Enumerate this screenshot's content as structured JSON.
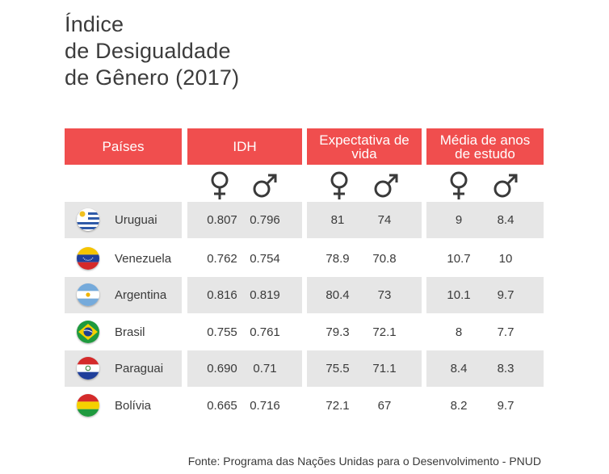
{
  "title_lines": [
    "Índice",
    "de Desigualdade",
    "de Gênero (2017)"
  ],
  "headers": {
    "countries": "Países",
    "idh": "IDH",
    "life": "Expectativa de vida",
    "school": "Média de anos de estudo"
  },
  "symbols": {
    "female": "female-symbol-icon",
    "male": "male-symbol-icon"
  },
  "colors": {
    "header": "#f04e4e",
    "band": "#e6e6e6",
    "text": "#3a3a3a"
  },
  "chart_data": {
    "type": "table",
    "columns": [
      "Países",
      "IDH ♀",
      "IDH ♂",
      "Expectativa de vida ♀",
      "Expectativa de vida ♂",
      "Média de anos de estudo ♀",
      "Média de anos de estudo ♂"
    ],
    "rows": [
      {
        "country": "Uruguai",
        "flag": "uruguay-flag-icon",
        "idh_f": "0.807",
        "idh_m": "0.796",
        "life_f": "81",
        "life_m": "74",
        "school_f": "9",
        "school_m": "8.4"
      },
      {
        "country": "Venezuela",
        "flag": "venezuela-flag-icon",
        "idh_f": "0.762",
        "idh_m": "0.754",
        "life_f": "78.9",
        "life_m": "70.8",
        "school_f": "10.7",
        "school_m": "10"
      },
      {
        "country": "Argentina",
        "flag": "argentina-flag-icon",
        "idh_f": "0.816",
        "idh_m": "0.819",
        "life_f": "80.4",
        "life_m": "73",
        "school_f": "10.1",
        "school_m": "9.7"
      },
      {
        "country": "Brasil",
        "flag": "brazil-flag-icon",
        "idh_f": "0.755",
        "idh_m": "0.761",
        "life_f": "79.3",
        "life_m": "72.1",
        "school_f": "8",
        "school_m": "7.7"
      },
      {
        "country": "Paraguai",
        "flag": "paraguay-flag-icon",
        "idh_f": "0.690",
        "idh_m": "0.71",
        "life_f": "75.5",
        "life_m": "71.1",
        "school_f": "8.4",
        "school_m": "8.3"
      },
      {
        "country": "Bolívia",
        "flag": "bolivia-flag-icon",
        "idh_f": "0.665",
        "idh_m": "0.716",
        "life_f": "72.1",
        "life_m": "67",
        "school_f": "8.2",
        "school_m": "9.7"
      }
    ]
  },
  "source": "Fonte: Programa das Nações Unidas para o Desenvolvimento - PNUD"
}
